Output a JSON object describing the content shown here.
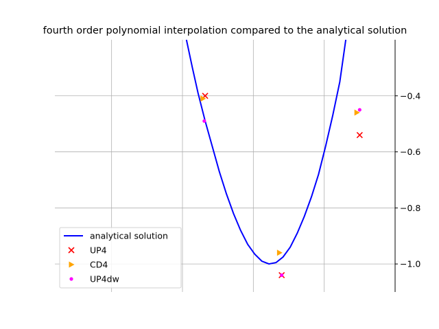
{
  "chart_data": {
    "type": "line",
    "title": "fourth order polynomial interpolation compared to the analytical solution",
    "xlabel": "",
    "ylabel": "",
    "xlim": [
      -0.2,
      1.0
    ],
    "ylim": [
      -1.1,
      -0.2
    ],
    "grid": true,
    "x_ticks": [
      0.0,
      0.25,
      0.5,
      0.75,
      1.0
    ],
    "y_ticks": [
      {
        "value": -0.4,
        "label": "−0.4"
      },
      {
        "value": -0.6,
        "label": "−0.6"
      },
      {
        "value": -0.8,
        "label": "−0.8"
      },
      {
        "value": -1.0,
        "label": "−1.0"
      }
    ],
    "legend_position": "bottom-left",
    "series": [
      {
        "name": "analytical solution",
        "kind": "line",
        "color": "#0000ff",
        "points": [
          [
            0.264,
            -0.2
          ],
          [
            0.285,
            -0.3
          ],
          [
            0.305,
            -0.39
          ],
          [
            0.33,
            -0.49
          ],
          [
            0.355,
            -0.58
          ],
          [
            0.38,
            -0.67
          ],
          [
            0.405,
            -0.75
          ],
          [
            0.43,
            -0.82
          ],
          [
            0.455,
            -0.88
          ],
          [
            0.48,
            -0.93
          ],
          [
            0.505,
            -0.965
          ],
          [
            0.53,
            -0.99
          ],
          [
            0.555,
            -1.0
          ],
          [
            0.58,
            -0.995
          ],
          [
            0.605,
            -0.975
          ],
          [
            0.63,
            -0.94
          ],
          [
            0.655,
            -0.89
          ],
          [
            0.68,
            -0.83
          ],
          [
            0.705,
            -0.76
          ],
          [
            0.73,
            -0.68
          ],
          [
            0.755,
            -0.58
          ],
          [
            0.78,
            -0.47
          ],
          [
            0.805,
            -0.35
          ],
          [
            0.826,
            -0.2
          ]
        ]
      },
      {
        "name": "UP4",
        "kind": "marker-x",
        "color": "#ff0000",
        "points": [
          [
            0.33,
            -0.4
          ],
          [
            0.6,
            -1.04
          ],
          [
            0.875,
            -0.54
          ]
        ]
      },
      {
        "name": "CD4",
        "kind": "marker-triangle",
        "color": "#ffa500",
        "points": [
          [
            0.322,
            -0.41
          ],
          [
            0.592,
            -0.96
          ],
          [
            0.865,
            -0.46
          ]
        ]
      },
      {
        "name": "UP4dw",
        "kind": "marker-dot",
        "color": "#ff00ff",
        "points": [
          [
            0.327,
            -0.49
          ],
          [
            0.6,
            -1.04
          ],
          [
            0.875,
            -0.45
          ]
        ]
      }
    ]
  }
}
